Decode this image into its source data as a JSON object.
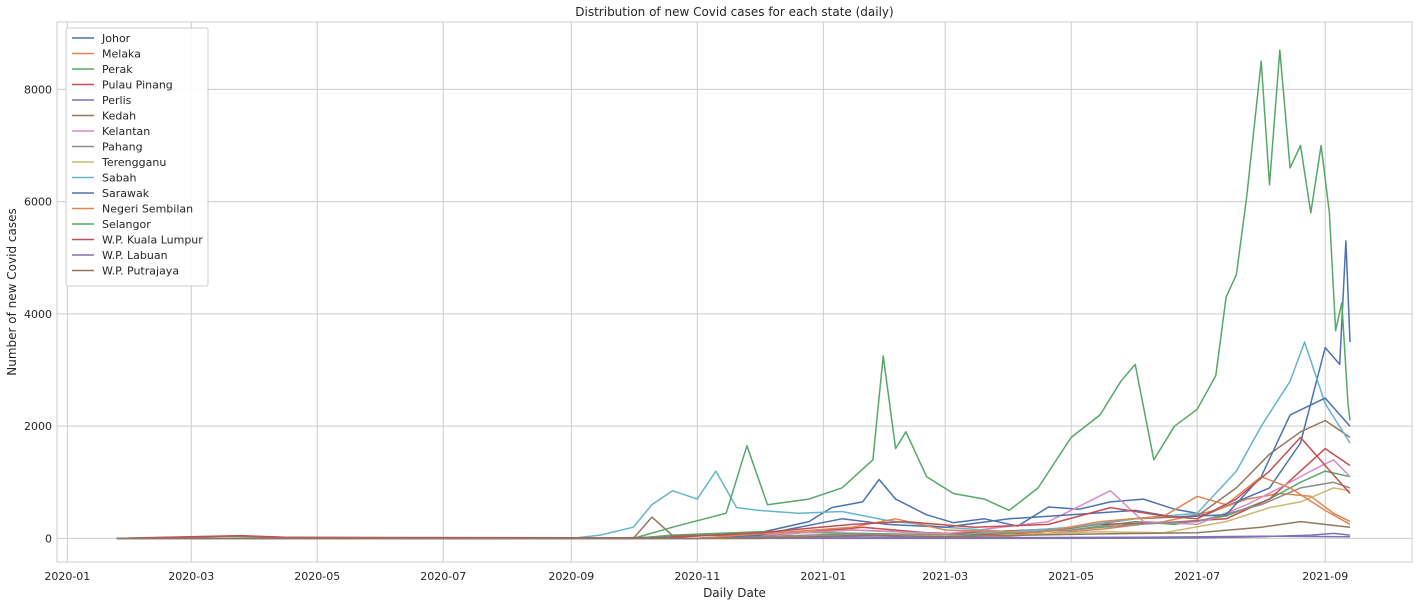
{
  "chart_data": {
    "type": "line",
    "title": "Distribution of new Covid cases for each state (daily)",
    "xlabel": "Daily Date",
    "ylabel": "Number of new Covid cases",
    "x_start": "2020-01-25",
    "x_end": "2021-09-13",
    "xlim": [
      "2019-12-27",
      "2021-10-13"
    ],
    "ylim": [
      -420,
      9200
    ],
    "x_ticks": [
      "2020-01",
      "2020-03",
      "2020-05",
      "2020-07",
      "2020-09",
      "2020-11",
      "2021-01",
      "2021-03",
      "2021-05",
      "2021-07",
      "2021-09"
    ],
    "y_ticks": [
      0,
      2000,
      4000,
      6000,
      8000
    ],
    "grid": true,
    "legend_position": "top-left",
    "series": [
      {
        "name": "Johor",
        "color": "#4c72b0",
        "points": [
          [
            "2020-01-25",
            0
          ],
          [
            "2020-09-01",
            0
          ],
          [
            "2020-10-15",
            20
          ],
          [
            "2020-12-01",
            100
          ],
          [
            "2020-12-25",
            300
          ],
          [
            "2021-01-05",
            550
          ],
          [
            "2021-01-20",
            650
          ],
          [
            "2021-01-28",
            1050
          ],
          [
            "2021-02-05",
            700
          ],
          [
            "2021-02-20",
            420
          ],
          [
            "2021-03-05",
            280
          ],
          [
            "2021-03-20",
            350
          ],
          [
            "2021-04-05",
            220
          ],
          [
            "2021-04-20",
            560
          ],
          [
            "2021-05-05",
            520
          ],
          [
            "2021-05-20",
            650
          ],
          [
            "2021-06-05",
            700
          ],
          [
            "2021-06-20",
            520
          ],
          [
            "2021-07-05",
            420
          ],
          [
            "2021-07-20",
            650
          ],
          [
            "2021-08-05",
            900
          ],
          [
            "2021-08-20",
            1700
          ],
          [
            "2021-09-01",
            3400
          ],
          [
            "2021-09-08",
            3100
          ],
          [
            "2021-09-11",
            5300
          ],
          [
            "2021-09-13",
            3500
          ]
        ]
      },
      {
        "name": "Melaka",
        "color": "#dd8452",
        "points": [
          [
            "2020-01-25",
            0
          ],
          [
            "2020-12-01",
            0
          ],
          [
            "2021-01-15",
            80
          ],
          [
            "2021-02-15",
            60
          ],
          [
            "2021-04-01",
            40
          ],
          [
            "2021-05-15",
            160
          ],
          [
            "2021-06-15",
            300
          ],
          [
            "2021-07-10",
            500
          ],
          [
            "2021-07-25",
            700
          ],
          [
            "2021-08-10",
            800
          ],
          [
            "2021-08-25",
            750
          ],
          [
            "2021-09-05",
            450
          ],
          [
            "2021-09-13",
            300
          ]
        ]
      },
      {
        "name": "Perak",
        "color": "#55a868",
        "points": [
          [
            "2020-01-25",
            0
          ],
          [
            "2020-10-01",
            0
          ],
          [
            "2020-10-20",
            60
          ],
          [
            "2020-12-01",
            120
          ],
          [
            "2021-01-01",
            100
          ],
          [
            "2021-02-01",
            80
          ],
          [
            "2021-03-15",
            60
          ],
          [
            "2021-05-01",
            150
          ],
          [
            "2021-06-01",
            300
          ],
          [
            "2021-06-20",
            250
          ],
          [
            "2021-07-15",
            400
          ],
          [
            "2021-08-05",
            700
          ],
          [
            "2021-08-20",
            1000
          ],
          [
            "2021-09-01",
            1200
          ],
          [
            "2021-09-13",
            1100
          ]
        ]
      },
      {
        "name": "Pulau Pinang",
        "color": "#c44e52",
        "points": [
          [
            "2020-01-25",
            0
          ],
          [
            "2020-11-01",
            0
          ],
          [
            "2020-12-15",
            80
          ],
          [
            "2021-01-20",
            200
          ],
          [
            "2021-02-20",
            100
          ],
          [
            "2021-04-01",
            60
          ],
          [
            "2021-05-15",
            250
          ],
          [
            "2021-06-15",
            280
          ],
          [
            "2021-07-15",
            350
          ],
          [
            "2021-08-05",
            700
          ],
          [
            "2021-08-20",
            1200
          ],
          [
            "2021-09-01",
            1600
          ],
          [
            "2021-09-13",
            1300
          ]
        ]
      },
      {
        "name": "Perlis",
        "color": "#8172b3",
        "points": [
          [
            "2020-01-25",
            0
          ],
          [
            "2021-05-01",
            0
          ],
          [
            "2021-07-01",
            10
          ],
          [
            "2021-08-01",
            30
          ],
          [
            "2021-08-25",
            60
          ],
          [
            "2021-09-05",
            90
          ],
          [
            "2021-09-13",
            60
          ]
        ]
      },
      {
        "name": "Kedah",
        "color": "#937860",
        "points": [
          [
            "2020-01-25",
            0
          ],
          [
            "2020-10-01",
            0
          ],
          [
            "2020-10-10",
            380
          ],
          [
            "2020-10-20",
            50
          ],
          [
            "2020-12-01",
            60
          ],
          [
            "2021-01-15",
            150
          ],
          [
            "2021-03-01",
            90
          ],
          [
            "2021-05-01",
            180
          ],
          [
            "2021-06-01",
            350
          ],
          [
            "2021-07-01",
            400
          ],
          [
            "2021-07-20",
            900
          ],
          [
            "2021-08-05",
            1500
          ],
          [
            "2021-08-20",
            1900
          ],
          [
            "2021-09-01",
            2100
          ],
          [
            "2021-09-13",
            1800
          ]
        ]
      },
      {
        "name": "Kelantan",
        "color": "#da8bc3",
        "points": [
          [
            "2020-01-25",
            0
          ],
          [
            "2020-11-01",
            0
          ],
          [
            "2021-01-15",
            150
          ],
          [
            "2021-03-01",
            80
          ],
          [
            "2021-04-20",
            300
          ],
          [
            "2021-05-20",
            850
          ],
          [
            "2021-06-05",
            300
          ],
          [
            "2021-07-01",
            250
          ],
          [
            "2021-07-25",
            600
          ],
          [
            "2021-08-10",
            900
          ],
          [
            "2021-08-25",
            1200
          ],
          [
            "2021-09-05",
            1400
          ],
          [
            "2021-09-13",
            1100
          ]
        ]
      },
      {
        "name": "Pahang",
        "color": "#8c8c8c",
        "points": [
          [
            "2020-01-25",
            0
          ],
          [
            "2020-11-01",
            0
          ],
          [
            "2021-01-15",
            80
          ],
          [
            "2021-03-01",
            60
          ],
          [
            "2021-05-01",
            150
          ],
          [
            "2021-06-01",
            250
          ],
          [
            "2021-07-01",
            300
          ],
          [
            "2021-08-01",
            600
          ],
          [
            "2021-08-20",
            900
          ],
          [
            "2021-09-05",
            1000
          ],
          [
            "2021-09-13",
            900
          ]
        ]
      },
      {
        "name": "Terengganu",
        "color": "#ccb974",
        "points": [
          [
            "2020-01-25",
            0
          ],
          [
            "2020-12-01",
            0
          ],
          [
            "2021-01-15",
            60
          ],
          [
            "2021-03-15",
            40
          ],
          [
            "2021-05-15",
            120
          ],
          [
            "2021-06-15",
            100
          ],
          [
            "2021-07-15",
            300
          ],
          [
            "2021-08-05",
            550
          ],
          [
            "2021-08-20",
            650
          ],
          [
            "2021-09-05",
            900
          ],
          [
            "2021-09-13",
            850
          ]
        ]
      },
      {
        "name": "Sabah",
        "color": "#64b5cd",
        "points": [
          [
            "2020-01-25",
            0
          ],
          [
            "2020-09-01",
            0
          ],
          [
            "2020-09-15",
            60
          ],
          [
            "2020-10-01",
            200
          ],
          [
            "2020-10-10",
            600
          ],
          [
            "2020-10-20",
            850
          ],
          [
            "2020-11-01",
            700
          ],
          [
            "2020-11-10",
            1200
          ],
          [
            "2020-11-20",
            550
          ],
          [
            "2020-12-01",
            500
          ],
          [
            "2020-12-20",
            450
          ],
          [
            "2021-01-10",
            480
          ],
          [
            "2021-02-01",
            320
          ],
          [
            "2021-03-01",
            200
          ],
          [
            "2021-04-01",
            120
          ],
          [
            "2021-05-01",
            200
          ],
          [
            "2021-06-01",
            350
          ],
          [
            "2021-07-01",
            450
          ],
          [
            "2021-07-20",
            1200
          ],
          [
            "2021-08-01",
            2000
          ],
          [
            "2021-08-15",
            2800
          ],
          [
            "2021-08-22",
            3500
          ],
          [
            "2021-09-01",
            2400
          ],
          [
            "2021-09-13",
            1700
          ]
        ]
      },
      {
        "name": "Sarawak",
        "color": "#4c72b0",
        "points": [
          [
            "2020-01-25",
            0
          ],
          [
            "2020-11-01",
            0
          ],
          [
            "2020-12-01",
            60
          ],
          [
            "2021-01-10",
            350
          ],
          [
            "2021-02-01",
            250
          ],
          [
            "2021-03-01",
            200
          ],
          [
            "2021-04-01",
            350
          ],
          [
            "2021-05-01",
            420
          ],
          [
            "2021-06-01",
            500
          ],
          [
            "2021-06-20",
            380
          ],
          [
            "2021-07-15",
            420
          ],
          [
            "2021-08-01",
            1100
          ],
          [
            "2021-08-15",
            2200
          ],
          [
            "2021-09-01",
            2500
          ],
          [
            "2021-09-13",
            2000
          ]
        ]
      },
      {
        "name": "Negeri Sembilan",
        "color": "#dd8452",
        "points": [
          [
            "2020-01-25",
            0
          ],
          [
            "2020-11-01",
            0
          ],
          [
            "2021-01-15",
            200
          ],
          [
            "2021-02-05",
            350
          ],
          [
            "2021-03-01",
            150
          ],
          [
            "2021-04-15",
            100
          ],
          [
            "2021-05-15",
            300
          ],
          [
            "2021-06-15",
            400
          ],
          [
            "2021-07-01",
            750
          ],
          [
            "2021-07-15",
            600
          ],
          [
            "2021-08-01",
            1100
          ],
          [
            "2021-08-15",
            900
          ],
          [
            "2021-09-01",
            500
          ],
          [
            "2021-09-13",
            250
          ]
        ]
      },
      {
        "name": "Selangor",
        "color": "#55a868",
        "points": [
          [
            "2020-01-25",
            0
          ],
          [
            "2020-03-20",
            40
          ],
          [
            "2020-04-15",
            20
          ],
          [
            "2020-06-01",
            0
          ],
          [
            "2020-10-01",
            0
          ],
          [
            "2020-10-20",
            200
          ],
          [
            "2020-11-15",
            450
          ],
          [
            "2020-11-25",
            1650
          ],
          [
            "2020-12-05",
            600
          ],
          [
            "2020-12-25",
            700
          ],
          [
            "2021-01-10",
            900
          ],
          [
            "2021-01-25",
            1400
          ],
          [
            "2021-01-30",
            3250
          ],
          [
            "2021-02-05",
            1600
          ],
          [
            "2021-02-10",
            1900
          ],
          [
            "2021-02-20",
            1100
          ],
          [
            "2021-03-05",
            800
          ],
          [
            "2021-03-20",
            700
          ],
          [
            "2021-04-01",
            500
          ],
          [
            "2021-04-15",
            900
          ],
          [
            "2021-05-01",
            1800
          ],
          [
            "2021-05-15",
            2200
          ],
          [
            "2021-05-25",
            2800
          ],
          [
            "2021-06-01",
            3100
          ],
          [
            "2021-06-10",
            1400
          ],
          [
            "2021-06-20",
            2000
          ],
          [
            "2021-07-01",
            2300
          ],
          [
            "2021-07-10",
            2900
          ],
          [
            "2021-07-15",
            4300
          ],
          [
            "2021-07-20",
            4700
          ],
          [
            "2021-07-25",
            6100
          ],
          [
            "2021-08-01",
            8500
          ],
          [
            "2021-08-05",
            6300
          ],
          [
            "2021-08-10",
            8700
          ],
          [
            "2021-08-15",
            6600
          ],
          [
            "2021-08-20",
            7000
          ],
          [
            "2021-08-25",
            5800
          ],
          [
            "2021-08-30",
            7000
          ],
          [
            "2021-09-03",
            5800
          ],
          [
            "2021-09-06",
            3700
          ],
          [
            "2021-09-09",
            4200
          ],
          [
            "2021-09-12",
            2400
          ],
          [
            "2021-09-13",
            2100
          ]
        ]
      },
      {
        "name": "W.P. Kuala Lumpur",
        "color": "#c44e52",
        "points": [
          [
            "2020-01-25",
            0
          ],
          [
            "2020-03-25",
            50
          ],
          [
            "2020-04-15",
            20
          ],
          [
            "2020-10-15",
            10
          ],
          [
            "2020-12-01",
            100
          ],
          [
            "2021-01-15",
            250
          ],
          [
            "2021-02-10",
            300
          ],
          [
            "2021-03-15",
            200
          ],
          [
            "2021-04-20",
            250
          ],
          [
            "2021-05-20",
            550
          ],
          [
            "2021-06-15",
            400
          ],
          [
            "2021-07-01",
            350
          ],
          [
            "2021-07-20",
            700
          ],
          [
            "2021-08-05",
            1200
          ],
          [
            "2021-08-20",
            1800
          ],
          [
            "2021-09-01",
            1300
          ],
          [
            "2021-09-13",
            800
          ]
        ]
      },
      {
        "name": "W.P. Labuan",
        "color": "#8172b3",
        "points": [
          [
            "2020-01-25",
            0
          ],
          [
            "2020-11-01",
            0
          ],
          [
            "2021-01-15",
            30
          ],
          [
            "2021-03-01",
            10
          ],
          [
            "2021-06-01",
            20
          ],
          [
            "2021-08-01",
            40
          ],
          [
            "2021-09-13",
            30
          ]
        ]
      },
      {
        "name": "W.P. Putrajaya",
        "color": "#937860",
        "points": [
          [
            "2020-01-25",
            0
          ],
          [
            "2020-12-01",
            0
          ],
          [
            "2021-01-20",
            60
          ],
          [
            "2021-03-01",
            30
          ],
          [
            "2021-05-15",
            80
          ],
          [
            "2021-07-01",
            100
          ],
          [
            "2021-08-01",
            200
          ],
          [
            "2021-08-20",
            300
          ],
          [
            "2021-09-13",
            200
          ]
        ]
      }
    ]
  }
}
